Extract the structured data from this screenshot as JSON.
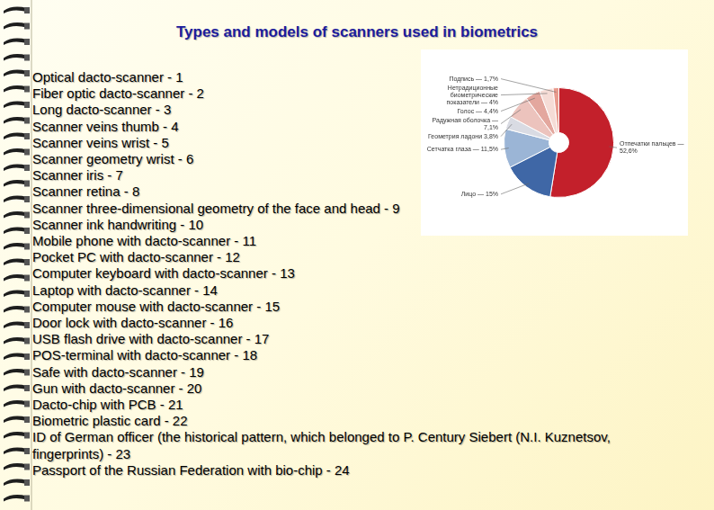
{
  "header": {
    "title": "Types and models of scanners used in biometrics"
  },
  "list": [
    "Optical dacto-scanner - 1",
    "Fiber optic dacto-scanner - 2",
    "Long dacto-scanner - 3",
    "Scanner veins thumb - 4",
    "Scanner veins wrist - 5",
    "Scanner geometry wrist - 6",
    "Scanner iris - 7",
    "Scanner retina - 8",
    "Scanner three-dimensional geometry of the face and head - 9",
    "Scanner ink handwriting - 10",
    "Mobile phone with dacto-scanner - 11",
    "Pocket PC with dacto-scanner - 12",
    "Computer keyboard with dacto-scanner - 13",
    "Laptop with dacto-scanner - 14",
    "Computer mouse with dacto-scanner - 15",
    "Door lock with dacto-scanner - 16",
    "USB flash drive with dacto-scanner - 17",
    "POS-terminal with dacto-scanner - 18",
    "Safe with dacto-scanner - 19",
    "Gun with dacto-scanner - 20",
    "Dacto-chip with PCB - 21",
    "Biometric plastic card - 22",
    "ID of German officer (the historical pattern, which belonged to P. Century Siebert (N.I. Kuznetsov, fingerprints) - 23",
    "Passport of the Russian Federation with bio-chip - 24"
  ],
  "chart_data": {
    "type": "doughnut",
    "categories": [
      "Отпечатки пальцев — 52,6%",
      "Лицо — 15%",
      "Сетчатка глаза — 11,5%",
      "Геометрия ладони 3,8%",
      "Радужная оболочка — 7,1%",
      "Голос — 4,4%",
      "Нетрадиционные биометрические показатели — 4%",
      "Подпись — 1,7%"
    ],
    "values": [
      52.6,
      15,
      11.5,
      3.8,
      7.1,
      4.4,
      4,
      1.7
    ],
    "colors": [
      "#c3202b",
      "#3f67a6",
      "#9bb5d6",
      "#d9dbe3",
      "#ecc3bd",
      "#e3a79e",
      "#f5dcd6",
      "#e89a8c"
    ]
  }
}
